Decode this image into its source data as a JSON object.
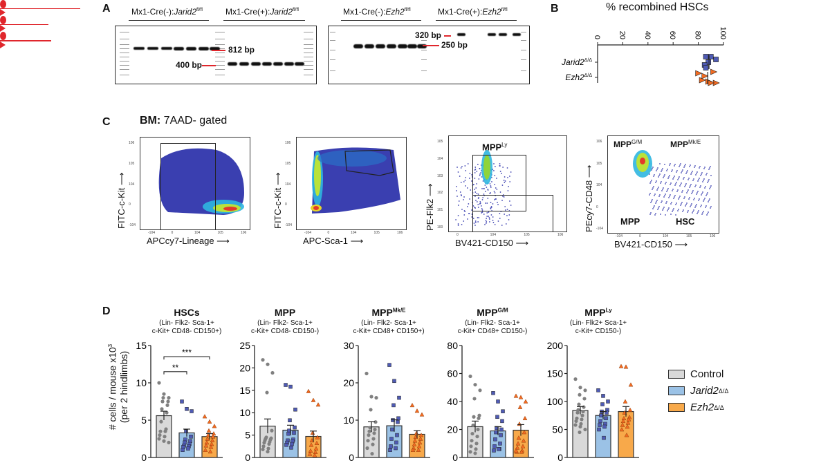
{
  "panels": {
    "A": {
      "letter": "A",
      "gel1": {
        "groups": [
          {
            "prefix": "Mx1-Cre(-):",
            "gene": "Jarid2",
            "sup": "fl/fl"
          },
          {
            "prefix": "Mx1-Cre(+):",
            "gene": "Jarid2",
            "sup": "fl/fl"
          }
        ],
        "markers": [
          "812 bp",
          "400 bp"
        ]
      },
      "gel2": {
        "groups": [
          {
            "prefix": "Mx1-Cre(-):",
            "gene": "Ezh2",
            "sup": "fl/fl"
          },
          {
            "prefix": "Mx1-Cre(+):",
            "gene": "Ezh2",
            "sup": "fl/fl"
          }
        ],
        "markers": [
          "320 bp",
          "250 bp"
        ]
      }
    },
    "B": {
      "letter": "B",
      "title": "% recombined HSCs",
      "ticks": [
        "0",
        "20",
        "40",
        "60",
        "80",
        "100"
      ],
      "rows": [
        {
          "gene": "Jarid2",
          "sup": "Δ/Δ"
        },
        {
          "gene": "Ezh2",
          "sup": "Δ/Δ"
        }
      ]
    },
    "C": {
      "letter": "C",
      "title_bold": "BM:",
      "title_rest": " 7AAD- gated",
      "plots": [
        {
          "xlabel": "APCcy7-Lineage",
          "ylabel": "FITC-c-Kit",
          "yticks": [
            "10^6",
            "10^5",
            "10^4",
            "0",
            "-10^4"
          ],
          "xticks": [
            "-10^4",
            "0",
            "10^4",
            "10^5",
            "10^6"
          ]
        },
        {
          "xlabel": "APC-Sca-1",
          "ylabel": "FITC-c-Kit",
          "yticks": [
            "10^6",
            "10^5",
            "10^4",
            "0",
            "-10^4"
          ],
          "xticks": [
            "-10^4",
            "0",
            "10^4",
            "10^5",
            "10^6"
          ]
        },
        {
          "xlabel": "BV421-CD150",
          "ylabel": "PE-Flk2",
          "gate_label": "MPP",
          "gate_sup": "Ly",
          "yticks": [
            "10^5",
            "10^4",
            "10^3",
            "10^2",
            "10^1",
            "10^0"
          ],
          "xticks": [
            "0",
            "10^4",
            "10^5",
            "10^6"
          ]
        },
        {
          "xlabel": "BV421-CD150",
          "ylabel": "PEcy7-CD48",
          "quadrants": [
            {
              "name": "MPP",
              "sup": "G/M"
            },
            {
              "name": "MPP",
              "sup": "Mk/E"
            },
            {
              "name": "MPP",
              "sup": ""
            },
            {
              "name": "HSC",
              "sup": ""
            }
          ],
          "yticks": [
            "10^6",
            "10^5",
            "10^4",
            "0",
            "-10^4"
          ],
          "xticks": [
            "-10^4",
            "0",
            "10^4",
            "10^5",
            "10^6"
          ]
        }
      ]
    },
    "D": {
      "letter": "D",
      "ylabel_line1": "# cells / mouse x10",
      "ylabel_sup": "3",
      "ylabel_line2": "(per 2 hindlimbs)",
      "legend": [
        {
          "label": "Control",
          "italic": false,
          "sup": "",
          "color": "#d9d9d9"
        },
        {
          "label": "Jarid2",
          "italic": true,
          "sup": "Δ/Δ",
          "color": "#9bc2e6"
        },
        {
          "label": "Ezh2",
          "italic": true,
          "sup": "Δ/Δ",
          "color": "#f8a94a"
        }
      ]
    }
  },
  "colors": {
    "control_fill": "#d9d9d9",
    "control_dot": "#808080",
    "jarid2_fill": "#9bc2e6",
    "jarid2_dot": "#4f5bb5",
    "ezh2_fill": "#f8a94a",
    "ezh2_dot": "#f26b21",
    "gate_arrow": "#e0262c"
  },
  "chart_data": [
    {
      "type": "scatter",
      "title": "% recombined HSCs",
      "categories": [
        "Jarid2Δ/Δ",
        "Ezh2Δ/Δ"
      ],
      "xlim": [
        0,
        100
      ],
      "xticks": [
        0,
        20,
        40,
        60,
        80,
        100
      ],
      "series": [
        {
          "name": "Jarid2Δ/Δ",
          "values": [
            86,
            90,
            94,
            88,
            85,
            86
          ],
          "mean": 88.5
        },
        {
          "name": "Ezh2Δ/Δ",
          "values": [
            80,
            92,
            85,
            83,
            88,
            94,
            90
          ],
          "mean": 87.5
        }
      ]
    },
    {
      "type": "bar",
      "title": "HSCs",
      "subtitle": "(Lin- Flk2- Sca-1+ c-Kit+ CD48- CD150+)",
      "ylabel": "# cells / mouse x10^3 (per 2 hindlimbs)",
      "ylim": [
        0,
        15
      ],
      "yticks": [
        0,
        5,
        10,
        15
      ],
      "categories": [
        "Control",
        "Jarid2Δ/Δ",
        "Ezh2Δ/Δ"
      ],
      "means": [
        5.6,
        3.3,
        2.8
      ],
      "sem": [
        0.6,
        0.5,
        0.4
      ],
      "points": [
        [
          10.0,
          8.5,
          8.0,
          8.0,
          7.5,
          7.5,
          7.0,
          6.5,
          6.0,
          4.8,
          3.8,
          3.5,
          3.5,
          3.0,
          2.8,
          2.5,
          2.2,
          2.0
        ],
        [
          7.5,
          6.5,
          6.2,
          3.5,
          2.8,
          2.4,
          2.2,
          2.0,
          1.8,
          1.6,
          1.5,
          1.4,
          1.2,
          1.0
        ],
        [
          5.5,
          4.8,
          4.2,
          3.6,
          3.2,
          3.0,
          2.8,
          2.5,
          2.3,
          2.0,
          1.8,
          1.6,
          1.4,
          1.0,
          0.8
        ]
      ],
      "significance": [
        {
          "from": 0,
          "to": 1,
          "label": "**"
        },
        {
          "from": 0,
          "to": 2,
          "label": "***"
        }
      ]
    },
    {
      "type": "bar",
      "title": "MPP",
      "subtitle": "(Lin- Flk2- Sca-1+ c-Kit+ CD48- CD150-)",
      "ylim": [
        0,
        25
      ],
      "yticks": [
        0,
        5,
        10,
        15,
        20,
        25
      ],
      "categories": [
        "Control",
        "Jarid2Δ/Δ",
        "Ezh2Δ/Δ"
      ],
      "means": [
        7.0,
        6.1,
        4.7
      ],
      "sem": [
        1.6,
        1.1,
        1.2
      ],
      "points": [
        [
          21.8,
          20.8,
          18.9,
          14.5,
          6.0,
          4.5,
          4.3,
          4.2,
          4.0,
          3.8,
          3.5,
          3.3,
          3.0,
          2.5,
          2.0,
          1.8,
          1.3
        ],
        [
          16.2,
          15.8,
          10.7,
          8.3,
          6.7,
          6.0,
          5.5,
          5.3,
          4.0,
          3.8,
          3.6,
          3.3,
          3.0,
          2.8,
          2.2
        ],
        [
          14.8,
          12.8,
          11.8,
          5.5,
          4.5,
          3.8,
          3.2,
          2.8,
          2.0,
          1.5,
          1.2,
          0.8,
          0.5
        ]
      ]
    },
    {
      "type": "bar",
      "title": "MPP^Mk/E",
      "subtitle": "(Lin- Flk2- Sca-1+ c-Kit+ CD48+ CD150+)",
      "ylim": [
        0,
        30
      ],
      "yticks": [
        0,
        10,
        20,
        30
      ],
      "categories": [
        "Control",
        "Jarid2Δ/Δ",
        "Ezh2Δ/Δ"
      ],
      "means": [
        8.2,
        8.5,
        6.2
      ],
      "sem": [
        1.4,
        1.6,
        1.0
      ],
      "points": [
        [
          22.5,
          16.3,
          16.0,
          12.8,
          9.5,
          8.0,
          7.5,
          7.0,
          6.5,
          6.0,
          5.0,
          4.5,
          3.5,
          2.5,
          1.0
        ],
        [
          24.8,
          20.5,
          16.0,
          14.0,
          10.5,
          10.0,
          9.5,
          7.5,
          6.0,
          5.0,
          4.0,
          3.0,
          2.5,
          2.0
        ],
        [
          14.0,
          12.5,
          11.5,
          6.5,
          6.0,
          5.5,
          5.0,
          4.5,
          4.0,
          3.5,
          3.0,
          2.5,
          2.0,
          2.0
        ]
      ]
    },
    {
      "type": "bar",
      "title": "MPP^G/M",
      "subtitle": "(Lin- Flk2- Sca-1+ c-Kit+ CD48+ CD150-)",
      "ylim": [
        0,
        80
      ],
      "yticks": [
        0,
        20,
        40,
        60,
        80
      ],
      "categories": [
        "Control",
        "Jarid2Δ/Δ",
        "Ezh2Δ/Δ"
      ],
      "means": [
        22,
        19,
        19.5
      ],
      "sem": [
        4,
        3,
        4
      ],
      "points": [
        [
          58,
          52,
          48,
          42,
          30,
          29,
          28,
          23,
          20,
          17,
          15,
          12,
          10,
          8,
          6,
          4,
          3
        ],
        [
          46,
          40,
          33,
          29,
          26,
          21,
          20,
          18,
          16,
          13,
          10,
          8,
          6,
          5,
          6
        ],
        [
          44,
          43,
          40,
          36,
          28,
          24,
          18,
          14,
          12,
          10,
          8,
          7,
          5,
          4,
          4,
          5
        ]
      ]
    },
    {
      "type": "bar",
      "title": "MPP^Ly",
      "subtitle": "(Lin- Flk2+ Sca-1+ c-Kit+ CD150-)",
      "ylim": [
        0,
        200
      ],
      "yticks": [
        0,
        50,
        100,
        150,
        200
      ],
      "categories": [
        "Control",
        "Jarid2Δ/Δ",
        "Ezh2Δ/Δ"
      ],
      "means": [
        84,
        75,
        82
      ],
      "sem": [
        7,
        7,
        9
      ],
      "points": [
        [
          140,
          125,
          120,
          112,
          105,
          95,
          90,
          85,
          82,
          80,
          75,
          70,
          68,
          65,
          60,
          58,
          55,
          50,
          45
        ],
        [
          120,
          110,
          100,
          95,
          85,
          82,
          80,
          75,
          70,
          65,
          60,
          58,
          55,
          50,
          35
        ],
        [
          163,
          162,
          130,
          100,
          85,
          80,
          72,
          70,
          68,
          65,
          62,
          58,
          55,
          50,
          40
        ]
      ]
    }
  ]
}
